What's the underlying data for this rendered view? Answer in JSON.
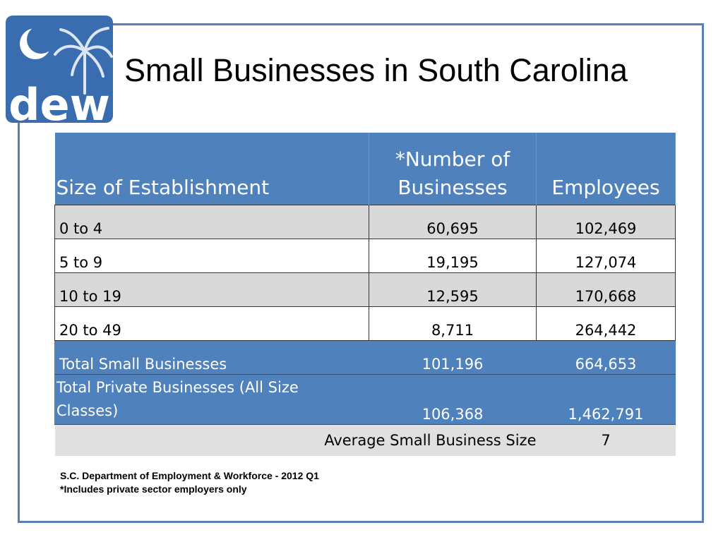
{
  "title": "Small Businesses in South Carolina",
  "logo": {
    "text": "dew",
    "icon": "sc-palmetto-crescent-logo"
  },
  "table": {
    "headers": [
      "Size of Establishment",
      "*Number of Businesses",
      "Employees"
    ],
    "rows": [
      {
        "label": "0 to 4",
        "businesses": "60,695",
        "employees": "102,469"
      },
      {
        "label": "5 to 9",
        "businesses": "19,195",
        "employees": "127,074"
      },
      {
        "label": "10 to 19",
        "businesses": "12,595",
        "employees": "170,668"
      },
      {
        "label": "20 to 49",
        "businesses": "8,711",
        "employees": "264,442"
      }
    ],
    "totals": [
      {
        "label": "Total Small Businesses",
        "businesses": "101,196",
        "employees": "664,653"
      },
      {
        "label": "Total Private Businesses (All Size Classes)",
        "businesses": "106,368",
        "employees": "1,462,791"
      }
    ],
    "average": {
      "label": "Average Small  Business Size",
      "value": "7"
    }
  },
  "footnotes": [
    "S.C. Department of Employment & Workforce - 2012 Q1",
    "*Includes private sector employers only"
  ],
  "colors": {
    "header_blue": "#4f81bd",
    "frame_blue": "#5b7fb8",
    "row_gray": "#d9d9d9"
  }
}
